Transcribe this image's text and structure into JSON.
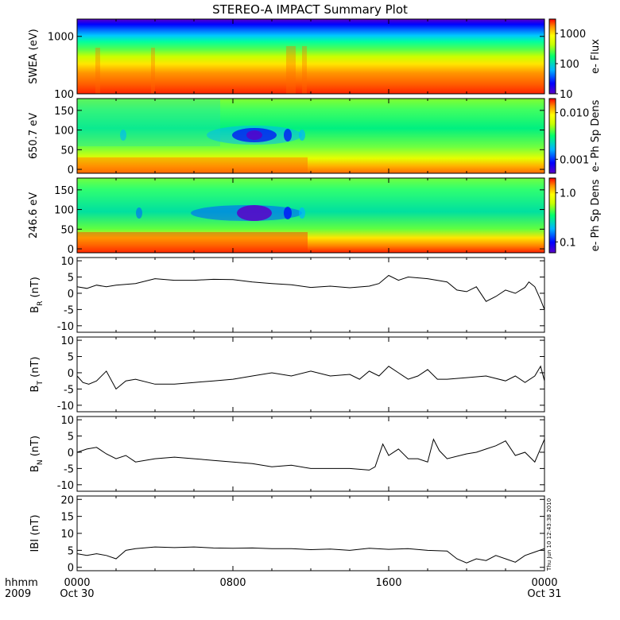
{
  "chart_data": {
    "title": "STEREO-A IMPACT Summary Plot",
    "time_axis": {
      "label_line1": "hhmm",
      "label_line2": "2009",
      "ticks": [
        {
          "hour": 0,
          "label": "0000",
          "sublabel": "Oct 30"
        },
        {
          "hour": 8,
          "label": "0800",
          "sublabel": ""
        },
        {
          "hour": 16,
          "label": "1600",
          "sublabel": ""
        },
        {
          "hour": 24,
          "label": "0000",
          "sublabel": "Oct 31"
        }
      ],
      "range_hours": [
        0,
        24
      ]
    },
    "spectrograms": [
      {
        "type": "heatmap",
        "ylabel": "SWEA (eV)",
        "ylog": true,
        "ylim": [
          100,
          2000
        ],
        "yticks": [
          "100",
          "1000"
        ],
        "colorbar_label": "e- Flux",
        "colorbar_ticks": [
          "10",
          "100",
          "1000"
        ]
      },
      {
        "type": "heatmap",
        "ylabel": "650.7 eV",
        "ylim": [
          -10,
          180
        ],
        "yticks": [
          "0",
          "50",
          "100",
          "150"
        ],
        "colorbar_label": "e- Ph Sp Dens",
        "colorbar_ticks": [
          "0.001",
          "0.010"
        ]
      },
      {
        "type": "heatmap",
        "ylabel": "246.6 eV",
        "ylim": [
          -10,
          180
        ],
        "yticks": [
          "0",
          "50",
          "100",
          "150"
        ],
        "colorbar_label": "e- Ph Sp Dens",
        "colorbar_ticks": [
          "0.1",
          "1.0"
        ]
      }
    ],
    "line_panels": [
      {
        "type": "line",
        "ylabel_base": "B",
        "ylabel_sub": "R",
        "ylabel_unit": "(nT)",
        "ylim": [
          -12,
          11
        ],
        "yticks": [
          "-10",
          "-5",
          "0",
          "5",
          "10"
        ],
        "x": [
          0,
          0.5,
          1,
          1.5,
          2,
          3,
          4,
          5,
          6,
          7,
          8,
          9,
          10,
          11,
          12,
          13,
          14,
          15,
          15.5,
          16,
          16.5,
          17,
          18,
          19,
          19.5,
          20,
          20.5,
          21,
          21.5,
          22,
          22.5,
          23,
          23.2,
          23.5,
          23.8,
          24
        ],
        "values": [
          2,
          1.5,
          2.5,
          2,
          2.5,
          3,
          4.5,
          4,
          4,
          4.3,
          4.2,
          3.5,
          3,
          2.6,
          1.8,
          2.2,
          1.7,
          2.2,
          3,
          5.5,
          4,
          5,
          4.5,
          3.5,
          1,
          0.5,
          2,
          -2.5,
          -1,
          1,
          0,
          1.8,
          3.5,
          2,
          -2,
          -5
        ]
      },
      {
        "type": "line",
        "ylabel_base": "B",
        "ylabel_sub": "T",
        "ylabel_unit": "(nT)",
        "ylim": [
          -12,
          11
        ],
        "yticks": [
          "-10",
          "-5",
          "0",
          "5",
          "10"
        ],
        "x": [
          0,
          0.3,
          0.6,
          1,
          1.5,
          2,
          2.5,
          3,
          4,
          5,
          6,
          7,
          8,
          9,
          10,
          11,
          12,
          13,
          14,
          14.5,
          15,
          15.5,
          16,
          16.5,
          17,
          17.5,
          18,
          18.5,
          19,
          20,
          21,
          22,
          22.5,
          23,
          23.5,
          23.8,
          24
        ],
        "values": [
          -1,
          -3,
          -3.5,
          -2.5,
          0.5,
          -5,
          -2.5,
          -2,
          -3.5,
          -3.5,
          -3,
          -2.5,
          -2,
          -1,
          0,
          -1,
          0.5,
          -1,
          -0.5,
          -2,
          0.5,
          -1,
          2,
          0,
          -2,
          -1,
          1,
          -2,
          -2,
          -1.5,
          -1,
          -2.5,
          -1,
          -3,
          -1,
          2,
          -2.5
        ]
      },
      {
        "type": "line",
        "ylabel_base": "B",
        "ylabel_sub": "N",
        "ylabel_unit": "(nT)",
        "ylim": [
          -12,
          11
        ],
        "yticks": [
          "-10",
          "-5",
          "0",
          "5",
          "10"
        ],
        "x": [
          0,
          0.5,
          1,
          1.5,
          2,
          2.5,
          3,
          4,
          5,
          6,
          7,
          8,
          9,
          10,
          11,
          12,
          13,
          14,
          15,
          15.3,
          15.7,
          16,
          16.5,
          17,
          17.5,
          18,
          18.3,
          18.6,
          19,
          20,
          20.5,
          21,
          21.5,
          22,
          22.5,
          23,
          23.5,
          24
        ],
        "values": [
          0,
          1,
          1.5,
          -0.5,
          -2,
          -1,
          -3,
          -2,
          -1.5,
          -2,
          -2.5,
          -3,
          -3.5,
          -4.5,
          -4,
          -5,
          -5,
          -5,
          -5.5,
          -4.5,
          2.5,
          -1,
          1,
          -2,
          -2,
          -3,
          4,
          0.5,
          -2,
          -0.5,
          0,
          1,
          2,
          3.5,
          -1,
          0,
          -3,
          4
        ]
      },
      {
        "type": "line",
        "ylabel_base": "IBI",
        "ylabel_sub": "",
        "ylabel_unit": "(nT)",
        "ylim": [
          -1,
          21
        ],
        "yticks": [
          "0",
          "5",
          "10",
          "15",
          "20"
        ],
        "x": [
          0,
          0.5,
          1,
          1.5,
          2,
          2.5,
          3,
          4,
          5,
          6,
          7,
          8,
          9,
          10,
          11,
          12,
          13,
          14,
          15,
          16,
          17,
          18,
          19,
          19.5,
          20,
          20.5,
          21,
          21.5,
          22,
          22.5,
          23,
          23.5,
          24
        ],
        "values": [
          4,
          3.5,
          4,
          3.5,
          2.5,
          5,
          5.5,
          6,
          5.8,
          6,
          5.7,
          5.6,
          5.7,
          5.5,
          5.5,
          5.2,
          5.4,
          5,
          5.6,
          5.3,
          5.5,
          5,
          4.8,
          2.5,
          1.3,
          2.5,
          2,
          3.5,
          2.5,
          1.5,
          3.5,
          4.5,
          5.5
        ]
      }
    ],
    "colors": {
      "spectrum": [
        "#5a00c8",
        "#0000ff",
        "#00b4ff",
        "#00ff6e",
        "#c8ff00",
        "#ffff00",
        "#ff8c00",
        "#ff0000"
      ]
    },
    "stamp": "Thu Jun 10 12:43:38 2010"
  }
}
